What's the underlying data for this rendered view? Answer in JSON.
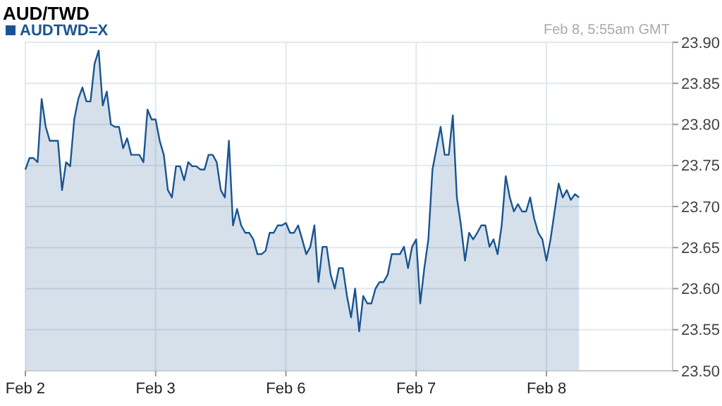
{
  "chart_data": {
    "type": "area",
    "title": "AUD/TWD",
    "annotations": [
      "Feb 8, 5:55am GMT"
    ],
    "categories": [
      "Feb 2",
      null,
      null,
      null,
      null,
      null,
      null,
      null,
      null,
      null,
      null,
      null,
      null,
      null,
      null,
      null,
      null,
      null,
      null,
      null,
      null,
      null,
      null,
      null,
      null,
      null,
      null,
      null,
      null,
      null,
      null,
      null,
      "Feb 3",
      null,
      null,
      null,
      null,
      null,
      null,
      null,
      null,
      null,
      null,
      null,
      null,
      null,
      null,
      null,
      null,
      null,
      null,
      null,
      null,
      null,
      null,
      null,
      null,
      null,
      null,
      null,
      null,
      null,
      null,
      null,
      "Feb 6",
      null,
      null,
      null,
      null,
      null,
      null,
      null,
      null,
      null,
      null,
      null,
      null,
      null,
      null,
      null,
      null,
      null,
      null,
      null,
      null,
      null,
      null,
      null,
      null,
      null,
      null,
      null,
      null,
      null,
      null,
      null,
      "Feb 7",
      null,
      null,
      null,
      null,
      null,
      null,
      null,
      null,
      null,
      null,
      null,
      null,
      null,
      null,
      null,
      null,
      null,
      null,
      null,
      null,
      null,
      null,
      null,
      null,
      null,
      null,
      null,
      null,
      null,
      null,
      null,
      "Feb 8",
      null,
      null,
      null,
      null,
      null,
      null,
      null,
      null,
      null,
      null,
      null,
      null,
      null,
      null,
      null,
      null,
      null,
      null,
      null,
      null,
      null,
      null,
      null,
      null,
      null,
      null,
      null,
      null,
      null,
      null,
      null
    ],
    "series": [
      {
        "name": "AUDTWD=X",
        "color": "#1a5591",
        "values": [
          23.745,
          23.759,
          23.759,
          23.754,
          23.831,
          23.797,
          23.78,
          23.78,
          23.78,
          23.72,
          23.754,
          23.749,
          23.806,
          23.831,
          23.845,
          23.828,
          23.828,
          23.874,
          23.89,
          23.823,
          23.84,
          23.8,
          23.797,
          23.797,
          23.771,
          23.783,
          23.763,
          23.763,
          23.763,
          23.754,
          23.818,
          23.806,
          23.806,
          23.78,
          23.763,
          23.72,
          23.711,
          23.749,
          23.749,
          23.732,
          23.754,
          23.749,
          23.749,
          23.745,
          23.745,
          23.763,
          23.763,
          23.754,
          23.72,
          23.711,
          23.78,
          23.677,
          23.697,
          23.677,
          23.668,
          23.668,
          23.66,
          23.642,
          23.642,
          23.646,
          23.668,
          23.668,
          23.677,
          23.677,
          23.68,
          23.668,
          23.668,
          23.677,
          23.66,
          23.642,
          23.651,
          23.677,
          23.608,
          23.651,
          23.651,
          23.617,
          23.6,
          23.625,
          23.625,
          23.591,
          23.565,
          23.6,
          23.548,
          23.591,
          23.582,
          23.582,
          23.6,
          23.608,
          23.608,
          23.617,
          23.642,
          23.642,
          23.642,
          23.651,
          23.625,
          23.651,
          23.66,
          23.582,
          23.625,
          23.66,
          23.745,
          23.771,
          23.797,
          23.763,
          23.763,
          23.811,
          23.711,
          23.677,
          23.634,
          23.668,
          23.66,
          23.668,
          23.677,
          23.677,
          23.651,
          23.66,
          23.642,
          23.677,
          23.737,
          23.711,
          23.694,
          23.703,
          23.694,
          23.694,
          23.711,
          23.685,
          23.668,
          23.66,
          23.634,
          23.66,
          23.694,
          23.728,
          23.711,
          23.72,
          23.708,
          23.715,
          23.711,
          null,
          null,
          null,
          null,
          null,
          null,
          null,
          null,
          null,
          null,
          null,
          null,
          null,
          null,
          null,
          null,
          null,
          null,
          null,
          null,
          null,
          null,
          null
        ]
      }
    ],
    "ylim": [
      23.5,
      23.9
    ],
    "yticks": [
      {
        "value": 23.5,
        "label": "23.50"
      },
      {
        "value": 23.55,
        "label": "23.55"
      },
      {
        "value": 23.6,
        "label": "23.60"
      },
      {
        "value": 23.65,
        "label": "23.65"
      },
      {
        "value": 23.7,
        "label": "23.70"
      },
      {
        "value": 23.75,
        "label": "23.75"
      },
      {
        "value": 23.8,
        "label": "23.80"
      },
      {
        "value": 23.85,
        "label": "23.85"
      },
      {
        "value": 23.9,
        "label": "23.90"
      }
    ],
    "grid": true,
    "legend": "top left"
  }
}
